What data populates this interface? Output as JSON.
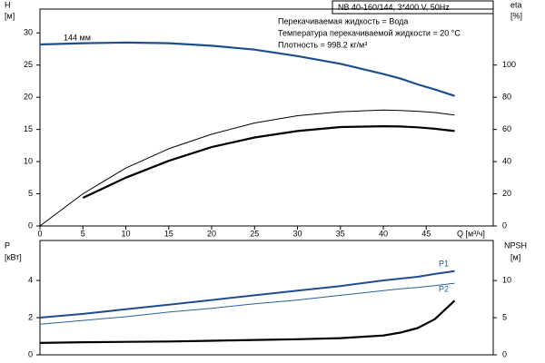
{
  "chart_data": [
    {
      "type": "line",
      "header": "NB 40-160/144, 3*400 V, 50Hz",
      "notes": [
        "Перекачиваемая жидкость = Вода",
        "Температура перекачиваемой жидкости = 20 °C",
        "Плотность = 998.2 кг/м³"
      ],
      "annotation": "144 мм",
      "ylabel": "H",
      "yunit": "[м]",
      "y2label": "eta",
      "y2unit": "[%]",
      "xlabel": "Q [м³/ч]",
      "x": [
        0,
        5,
        10,
        15,
        20,
        25,
        30,
        35,
        40,
        42,
        44,
        46,
        48.3
      ],
      "xlim": [
        0,
        52.8
      ],
      "xticks": [
        0,
        5,
        10,
        15,
        20,
        25,
        30,
        35,
        40,
        45
      ],
      "ylim": [
        0,
        33.7
      ],
      "yticks": [
        0,
        5,
        10,
        15,
        20,
        25,
        30
      ],
      "y2lim": [
        0,
        134.8
      ],
      "y2ticks": [
        0,
        20,
        40,
        60,
        80,
        100
      ],
      "series": [
        {
          "color": "#1f4e8c",
          "width": 2.2,
          "values": [
            28.2,
            28.4,
            28.5,
            28.4,
            28.0,
            27.4,
            26.4,
            25.2,
            23.6,
            22.9,
            22.0,
            21.2,
            20.2
          ]
        },
        {
          "color": "#000000",
          "width": 1,
          "axis": "y2",
          "values": [
            0,
            20,
            36,
            48,
            57,
            64,
            68.5,
            71,
            72,
            71.8,
            71.3,
            70.5,
            69
          ]
        },
        {
          "color": "#000000",
          "width": 2.2,
          "axis": "y2",
          "values": [
            null,
            17.5,
            30,
            40.5,
            49,
            55,
            59,
            61.5,
            62,
            61.8,
            61.3,
            60.4,
            59
          ]
        }
      ]
    },
    {
      "type": "line",
      "ylabel": "P",
      "yunit": "[кВт]",
      "y2label": "NPSH",
      "y2unit": "[м]",
      "x": [
        0,
        5,
        10,
        15,
        20,
        25,
        30,
        35,
        40,
        42,
        44,
        46,
        48.3
      ],
      "xlim": [
        0,
        52.8
      ],
      "ylim": [
        0,
        6.15
      ],
      "yticks": [
        0,
        2,
        4
      ],
      "y2lim": [
        0,
        15.4
      ],
      "y2ticks": [
        0,
        5,
        10
      ],
      "series": [
        {
          "name": "P1",
          "color": "#1f4e8c",
          "width": 2,
          "values": [
            2.0,
            2.2,
            2.45,
            2.7,
            2.95,
            3.2,
            3.45,
            3.7,
            4.0,
            4.1,
            4.2,
            4.35,
            4.5
          ]
        },
        {
          "name": "P2",
          "color": "#2a5f9e",
          "width": 1,
          "values": [
            1.65,
            1.85,
            2.05,
            2.3,
            2.5,
            2.75,
            2.95,
            3.2,
            3.45,
            3.55,
            3.62,
            3.72,
            3.85
          ]
        },
        {
          "color": "#000000",
          "width": 2.2,
          "axis": "y2",
          "values": [
            1.6,
            1.7,
            1.75,
            1.8,
            1.9,
            2.0,
            2.1,
            2.25,
            2.6,
            3.0,
            3.6,
            4.8,
            7.3
          ]
        }
      ]
    }
  ]
}
